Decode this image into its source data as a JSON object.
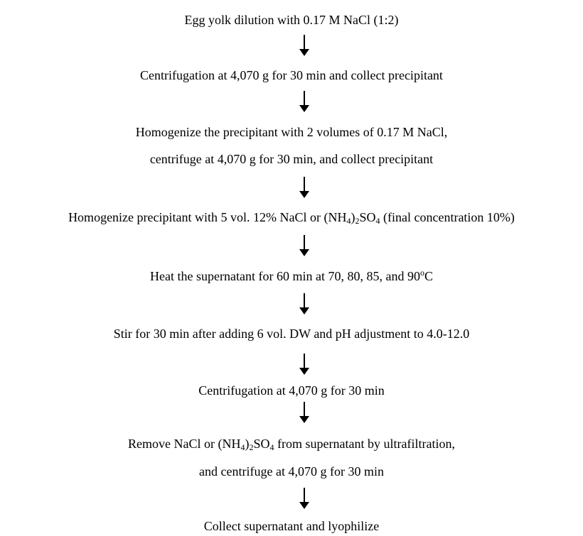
{
  "steps": [
    {
      "text": "Egg yolk dilution with 0.17 M NaCl (1:2)"
    },
    {
      "text": "Centrifugation at 4,070 g for 30 min and collect precipitant"
    },
    {
      "line1": "Homogenize the precipitant with 2 volumes of 0.17 M NaCl,",
      "line2": "centrifuge at 4,070 g for 30 min, and collect precipitant"
    },
    {
      "pre": "Homogenize precipitant with 5 vol. 12% NaCl or (NH",
      "sub1": "4",
      "mid": ")",
      "sub2": "2",
      "post": "SO",
      "sub3": "4",
      "tail": " (final concentration 10%)"
    },
    {
      "pre": "Heat the supernatant for 60 min at 70, 80, 85, and 90",
      "sup": "o",
      "post": "C"
    },
    {
      "text": "Stir for 30 min after adding 6 vol. DW and pH adjustment to 4.0-12.0"
    },
    {
      "text": "Centrifugation at 4,070 g for 30 min"
    },
    {
      "pre": "Remove NaCl or (NH",
      "sub1": "4",
      "mid": ")",
      "sub2": "2",
      "post": "SO",
      "sub3": "4",
      "tail": " from supernatant by ultrafiltration,",
      "line2": "and centrifuge at 4,070 g for 30 min"
    },
    {
      "text": "Collect supernatant and lyophilize"
    }
  ],
  "arrow_icon": "down-arrow-icon",
  "text_color": "#000000"
}
